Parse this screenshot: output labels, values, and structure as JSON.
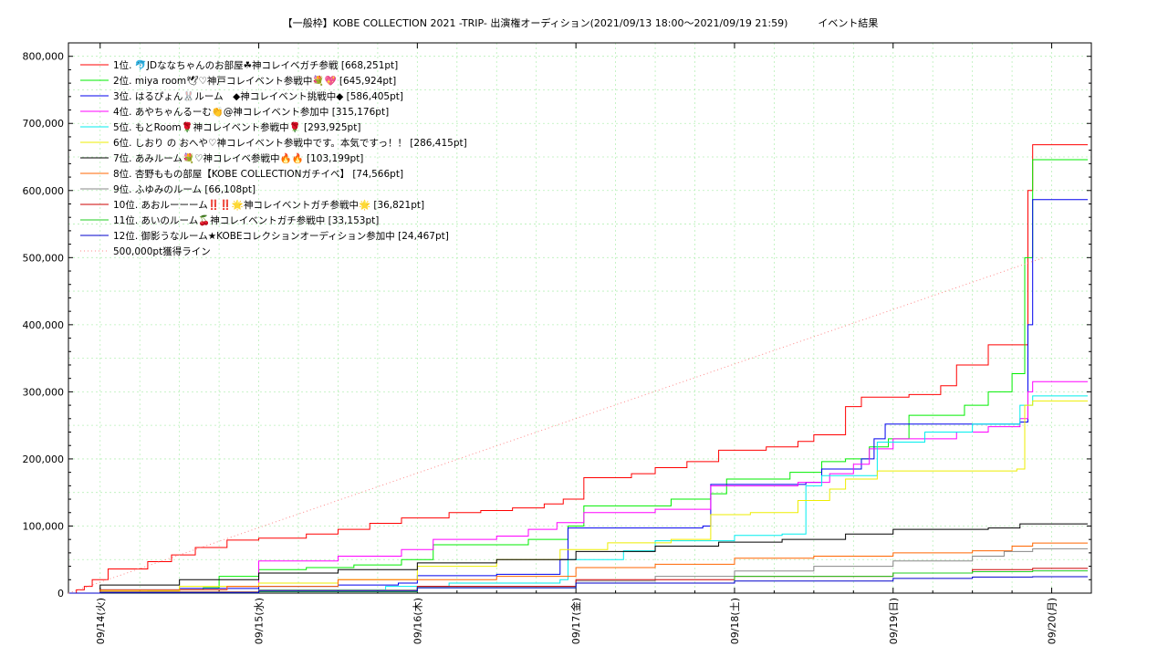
{
  "chart_data": {
    "type": "line",
    "title": "【一般枠】KOBE COLLECTION 2021 -TRIP- 出演権オーディション(2021/09/13 18:00〜2021/09/19 21:59)　　　イベント結果",
    "xlabel": "",
    "ylabel": "",
    "ylim": [
      0,
      820000
    ],
    "xlim": [
      -0.2,
      6.25
    ],
    "grid": true,
    "legend_position": "top-left",
    "y_ticks": [
      {
        "value": 0,
        "label": "0"
      },
      {
        "value": 100000,
        "label": "100,000"
      },
      {
        "value": 200000,
        "label": "200,000"
      },
      {
        "value": 300000,
        "label": "300,000"
      },
      {
        "value": 400000,
        "label": "400,000"
      },
      {
        "value": 500000,
        "label": "500,000"
      },
      {
        "value": 600000,
        "label": "600,000"
      },
      {
        "value": 700000,
        "label": "700,000"
      },
      {
        "value": 800000,
        "label": "800,000"
      }
    ],
    "x_ticks": [
      {
        "value": 0,
        "label": "09/14(火)"
      },
      {
        "value": 1,
        "label": "09/15(水)"
      },
      {
        "value": 2,
        "label": "09/16(木)"
      },
      {
        "value": 3,
        "label": "09/17(金)"
      },
      {
        "value": 4,
        "label": "09/18(土)"
      },
      {
        "value": 5,
        "label": "09/19(日)"
      },
      {
        "value": 6,
        "label": "09/20(月)"
      }
    ],
    "series": [
      {
        "name": "1位. 🐬JDななちゃんのお部屋☘神コレイベガチ参戦 [668,251pt]",
        "color": "#ff0000",
        "x": [
          -0.2,
          -0.15,
          -0.1,
          -0.05,
          0.05,
          0.3,
          0.45,
          0.6,
          0.8,
          1.0,
          1.3,
          1.5,
          1.7,
          1.9,
          2.2,
          2.4,
          2.6,
          2.8,
          2.92,
          3.05,
          3.35,
          3.5,
          3.7,
          3.9,
          4.2,
          4.4,
          4.5,
          4.7,
          4.8,
          5.1,
          5.3,
          5.4,
          5.6,
          5.78,
          5.85,
          5.88
        ],
        "y": [
          0,
          5000,
          10000,
          20000,
          36000,
          47000,
          57000,
          68000,
          79000,
          82000,
          88000,
          95000,
          104000,
          112000,
          120000,
          123000,
          127000,
          133000,
          140000,
          172000,
          178000,
          187000,
          196000,
          213000,
          218000,
          226000,
          236000,
          278000,
          292000,
          296000,
          309000,
          340000,
          370000,
          370000,
          600000,
          668251
        ]
      },
      {
        "name": "2位. miya room🕊♡神戸コレイベント参戦中💐💖 [645,924pt]",
        "color": "#00ee00",
        "x": [
          -0.2,
          0.0,
          0.3,
          0.5,
          0.65,
          0.75,
          1.0,
          1.3,
          1.6,
          1.9,
          2.1,
          2.7,
          2.95,
          3.05,
          3.6,
          3.85,
          3.95,
          4.35,
          4.55,
          4.7,
          4.85,
          4.97,
          5.1,
          5.45,
          5.6,
          5.75,
          5.83,
          5.88
        ],
        "y": [
          0,
          2000,
          3000,
          5000,
          8000,
          25000,
          35000,
          38000,
          42000,
          50000,
          72000,
          80000,
          100000,
          130000,
          140000,
          148000,
          170000,
          180000,
          196000,
          200000,
          218000,
          230000,
          265000,
          280000,
          300000,
          327000,
          500000,
          645924
        ]
      },
      {
        "name": "3位. はるぴょん🐰ルーム　◆神コレイベント挑戦中◆ [586,405pt]",
        "color": "#0000ee",
        "x": [
          -0.2,
          0.0,
          0.5,
          1.0,
          1.5,
          1.88,
          2.0,
          2.5,
          2.9,
          2.95,
          3.8,
          3.85,
          4.45,
          4.55,
          4.8,
          4.88,
          4.95,
          5.3,
          5.8,
          5.85,
          5.88
        ],
        "y": [
          0,
          5000,
          7000,
          10000,
          12000,
          15000,
          26000,
          28000,
          50000,
          97000,
          100000,
          162000,
          165000,
          185000,
          200000,
          230000,
          252000,
          252000,
          255000,
          400000,
          586405
        ]
      },
      {
        "name": "4位. あやちゃんるーむ👏@神コレイベント参加中 [315,176pt]",
        "color": "#ff00ff",
        "x": [
          -0.2,
          0.0,
          0.5,
          0.8,
          1.0,
          1.5,
          1.9,
          2.1,
          2.5,
          2.7,
          2.88,
          3.05,
          3.5,
          3.85,
          4.4,
          4.6,
          4.75,
          4.85,
          5.0,
          5.4,
          5.6,
          5.8,
          5.85,
          5.88
        ],
        "y": [
          0,
          3000,
          5000,
          10000,
          48000,
          55000,
          65000,
          80000,
          85000,
          95000,
          105000,
          120000,
          125000,
          160000,
          165000,
          178000,
          192000,
          215000,
          230000,
          240000,
          248000,
          260000,
          300000,
          315176
        ]
      },
      {
        "name": "5位. もとRoom🌹神コレイベント参戦中🌹 [293,925pt]",
        "color": "#00eeee",
        "x": [
          -0.2,
          0.0,
          1.0,
          1.8,
          2.2,
          2.9,
          2.95,
          3.3,
          3.5,
          4.0,
          4.3,
          4.45,
          4.55,
          4.9,
          5.2,
          5.5,
          5.8,
          5.88
        ],
        "y": [
          0,
          2000,
          5000,
          10000,
          15000,
          20000,
          50000,
          63000,
          78000,
          86000,
          88000,
          160000,
          175000,
          225000,
          240000,
          252000,
          280000,
          293925
        ]
      },
      {
        "name": "6位. しおり の おへや♡神コレイベント参戦中です。本気ですっ！！ [286,415pt]",
        "color": "#eeee00",
        "x": [
          -0.2,
          0.0,
          0.5,
          1.0,
          1.5,
          2.0,
          2.5,
          2.9,
          3.2,
          3.6,
          3.85,
          4.1,
          4.4,
          4.6,
          4.7,
          4.9,
          5.5,
          5.78,
          5.83,
          5.88
        ],
        "y": [
          0,
          3000,
          10000,
          15000,
          20000,
          40000,
          50000,
          65000,
          75000,
          80000,
          117000,
          120000,
          138000,
          155000,
          170000,
          182000,
          182000,
          185000,
          280000,
          286415
        ]
      },
      {
        "name": "7位. あみルーム💐♡神コレイベ参戦中🔥🔥 [103,199pt]",
        "color": "#000000",
        "x": [
          -0.2,
          0.0,
          0.5,
          1.0,
          1.5,
          2.0,
          2.5,
          3.0,
          3.5,
          3.9,
          4.3,
          4.7,
          5.0,
          5.6,
          5.8,
          5.88
        ],
        "y": [
          0,
          12000,
          20000,
          30000,
          35000,
          45000,
          50000,
          62000,
          70000,
          76000,
          80000,
          88000,
          95000,
          97000,
          103199,
          103199
        ]
      },
      {
        "name": "8位. 杏野ももの部屋【KOBE COLLECTIONガチイベ】 [74,566pt]",
        "color": "#ff6600",
        "x": [
          -0.2,
          0.0,
          0.8,
          1.5,
          2.5,
          3.0,
          3.5,
          4.0,
          4.5,
          5.0,
          5.5,
          5.75,
          5.88
        ],
        "y": [
          0,
          5000,
          10000,
          20000,
          25000,
          38000,
          43000,
          52000,
          55000,
          60000,
          63000,
          70000,
          74566
        ]
      },
      {
        "name": "9位. ふゆみのルーム [66,108pt]",
        "color": "#888888",
        "x": [
          -0.2,
          0.0,
          1.0,
          2.0,
          3.0,
          3.5,
          4.0,
          4.5,
          5.0,
          5.5,
          5.7,
          5.88
        ],
        "y": [
          0,
          2000,
          5000,
          10000,
          18000,
          25000,
          33000,
          40000,
          48000,
          55000,
          62000,
          66108
        ]
      },
      {
        "name": "10位. あおルーーーム‼️‼️🌟神コレイベントガチ参戦中🌟 [36,821pt]",
        "color": "#cc0000",
        "x": [
          -0.2,
          0.0,
          1.0,
          2.0,
          3.0,
          4.0,
          5.0,
          5.5,
          5.88
        ],
        "y": [
          0,
          1000,
          3000,
          10000,
          20000,
          25000,
          30000,
          35000,
          36821
        ]
      },
      {
        "name": "11位. あいのルーム🍒神コレイベントガチ参戦中 [33,153pt]",
        "color": "#22cc22",
        "x": [
          -0.2,
          0.0,
          1.0,
          2.0,
          3.0,
          4.0,
          5.0,
          5.5,
          5.88
        ],
        "y": [
          0,
          500,
          2000,
          8000,
          15000,
          25000,
          30000,
          32000,
          33153
        ]
      },
      {
        "name": "12位. 御影うなルーム★KOBEコレクションオーディション参加中 [24,467pt]",
        "color": "#0000cc",
        "x": [
          -0.2,
          0.0,
          1.0,
          2.0,
          3.0,
          4.0,
          5.0,
          5.5,
          5.88
        ],
        "y": [
          0,
          500,
          3000,
          8000,
          15000,
          18000,
          22000,
          24000,
          24467
        ]
      },
      {
        "name": "500,000pt獲得ライン",
        "color": "#ff8888",
        "dashed": true,
        "x": [
          -0.2,
          5.95
        ],
        "y": [
          0,
          500000
        ]
      }
    ]
  }
}
